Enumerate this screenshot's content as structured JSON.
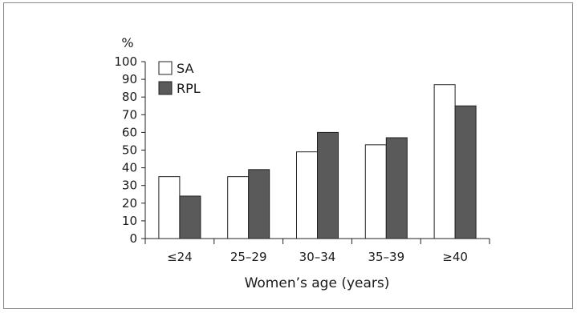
{
  "chart_data": {
    "type": "bar",
    "title": "",
    "xlabel": "Women’s age (years)",
    "ylabel": "%",
    "ylim": [
      0,
      100
    ],
    "yticks": [
      0,
      10,
      20,
      30,
      40,
      50,
      60,
      70,
      80,
      90,
      100
    ],
    "categories": [
      "≤24",
      "25–29",
      "30–34",
      "35–39",
      "≥40"
    ],
    "series": [
      {
        "name": "SA",
        "values": [
          35,
          35,
          49,
          53,
          87
        ],
        "color": "#ffffff"
      },
      {
        "name": "RPL",
        "values": [
          24,
          39,
          60,
          57,
          75
        ],
        "color": "#5a5a5a"
      }
    ],
    "grid": false,
    "legend_position": "top-left"
  }
}
